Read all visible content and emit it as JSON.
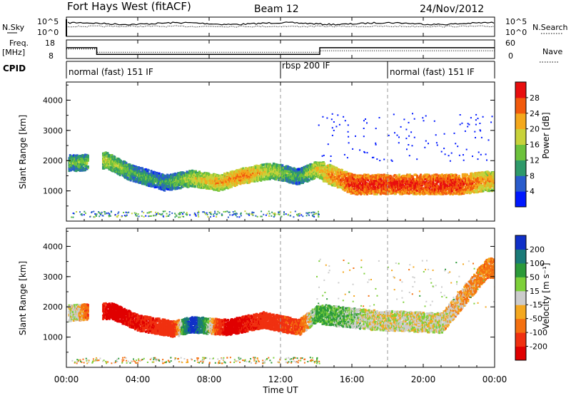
{
  "header": {
    "title": "Fort Hays West (fitACF)",
    "beam": "Beam 12",
    "date": "24/Nov/2012"
  },
  "top_panels": {
    "nsky_label": "N.Sky",
    "nsky_ticks": [
      "10^5",
      "10^0"
    ],
    "nsearch_label": "N.Search",
    "nsearch_ticks": [
      "10^5",
      "10^0"
    ],
    "freq_label_1": "Freq.",
    "freq_label_2": "[MHz]",
    "freq_ticks": [
      "18",
      "8"
    ],
    "nave_label": "Nave",
    "nave_ticks": [
      "60",
      "0"
    ],
    "cpid_label": "CPID",
    "cpid_segments": [
      {
        "label": "normal (fast) 151 IF",
        "start_hour": 0
      },
      {
        "label": "rbsp 200 IF",
        "start_hour": 12
      },
      {
        "label": "normal (fast) 151 IF",
        "start_hour": 18
      }
    ]
  },
  "x_axis": {
    "label": "Time UT",
    "ticks": [
      "00:00",
      "04:00",
      "08:00",
      "12:00",
      "16:00",
      "20:00",
      "00:00"
    ]
  },
  "power_panel": {
    "ylabel": "Slant Range [km]",
    "yticks": [
      "4000",
      "3000",
      "2000",
      "1000"
    ],
    "colorbar_label": "Power [dB]",
    "colorbar_ticks": [
      "28",
      "24",
      "20",
      "16",
      "12",
      "8",
      "4"
    ],
    "colors": [
      "#0018ff",
      "#2a5ccc",
      "#2f9a6a",
      "#6dc23c",
      "#c8d23a",
      "#f4a81c",
      "#f25a0c",
      "#e80e0e"
    ]
  },
  "velocity_panel": {
    "ylabel": "Slant Range [km]",
    "yticks": [
      "4000",
      "3000",
      "2000",
      "1000"
    ],
    "colorbar_label": "Velocity [m s⁻¹]",
    "colorbar_ticks": [
      "200",
      "100",
      "50",
      "15",
      "-15",
      "-50",
      "-100",
      "-200"
    ],
    "colors": [
      "#1030c8",
      "#1a7a78",
      "#2c9a3a",
      "#7ed03a",
      "#cccccc",
      "#f4a820",
      "#f47010",
      "#f03010",
      "#e00000"
    ]
  },
  "chart_data": {
    "type": "heatmap",
    "xlabel": "Time UT",
    "xlim_hours": [
      0,
      24
    ],
    "ylabel": "Slant Range [km]",
    "ylim_km": [
      0,
      4600
    ],
    "freq_mhz": [
      {
        "from_hour": 0,
        "to_hour": 1.7,
        "value": 13.8
      },
      {
        "from_hour": 1.7,
        "to_hour": 14.2,
        "value": 10.2
      },
      {
        "from_hour": 14.2,
        "to_hour": 24,
        "value": 13.8
      }
    ],
    "nave": [
      {
        "from_hour": 0,
        "to_hour": 1.7,
        "value": 31
      },
      {
        "from_hour": 1.7,
        "to_hour": 14.2,
        "value": 20
      },
      {
        "from_hour": 14.2,
        "to_hour": 24,
        "value": 25
      }
    ],
    "power_echoes": [
      {
        "hour": 0.5,
        "range_km": 1950,
        "power_db": 14
      },
      {
        "hour": 2.2,
        "range_km": 2050,
        "power_db": 18
      },
      {
        "hour": 3.5,
        "range_km": 1650,
        "power_db": 14
      },
      {
        "hour": 5.5,
        "range_km": 1300,
        "power_db": 12
      },
      {
        "hour": 7.0,
        "range_km": 1450,
        "power_db": 18
      },
      {
        "hour": 8.5,
        "range_km": 1300,
        "power_db": 22
      },
      {
        "hour": 10.0,
        "range_km": 1550,
        "power_db": 24
      },
      {
        "hour": 11.5,
        "range_km": 1700,
        "power_db": 18
      },
      {
        "hour": 13.0,
        "range_km": 1500,
        "power_db": 12
      },
      {
        "hour": 14.0,
        "range_km": 1750,
        "power_db": 20
      },
      {
        "hour": 16.0,
        "range_km": 1250,
        "power_db": 28
      },
      {
        "hour": 18.0,
        "range_km": 1250,
        "power_db": 28
      },
      {
        "hour": 20.0,
        "range_km": 1250,
        "power_db": 28
      },
      {
        "hour": 22.0,
        "range_km": 1250,
        "power_db": 28
      },
      {
        "hour": 23.5,
        "range_km": 1350,
        "power_db": 22
      }
    ],
    "velocity_echoes": [
      {
        "hour": 0.5,
        "range_km": 1850,
        "velocity": 0
      },
      {
        "hour": 2.5,
        "range_km": 1900,
        "velocity": -200
      },
      {
        "hour": 4.0,
        "range_km": 1500,
        "velocity": -150
      },
      {
        "hour": 6.0,
        "range_km": 1300,
        "velocity": -100
      },
      {
        "hour": 7.0,
        "range_km": 1450,
        "velocity": 200
      },
      {
        "hour": 9.0,
        "range_km": 1350,
        "velocity": -200
      },
      {
        "hour": 11.0,
        "range_km": 1600,
        "velocity": -120
      },
      {
        "hour": 13.0,
        "range_km": 1350,
        "velocity": -80
      },
      {
        "hour": 14.0,
        "range_km": 1800,
        "velocity": 50
      },
      {
        "hour": 17.0,
        "range_km": 1600,
        "velocity": 0
      },
      {
        "hour": 21.0,
        "range_km": 1500,
        "velocity": 0
      },
      {
        "hour": 23.5,
        "range_km": 3300,
        "velocity": -50
      }
    ]
  }
}
